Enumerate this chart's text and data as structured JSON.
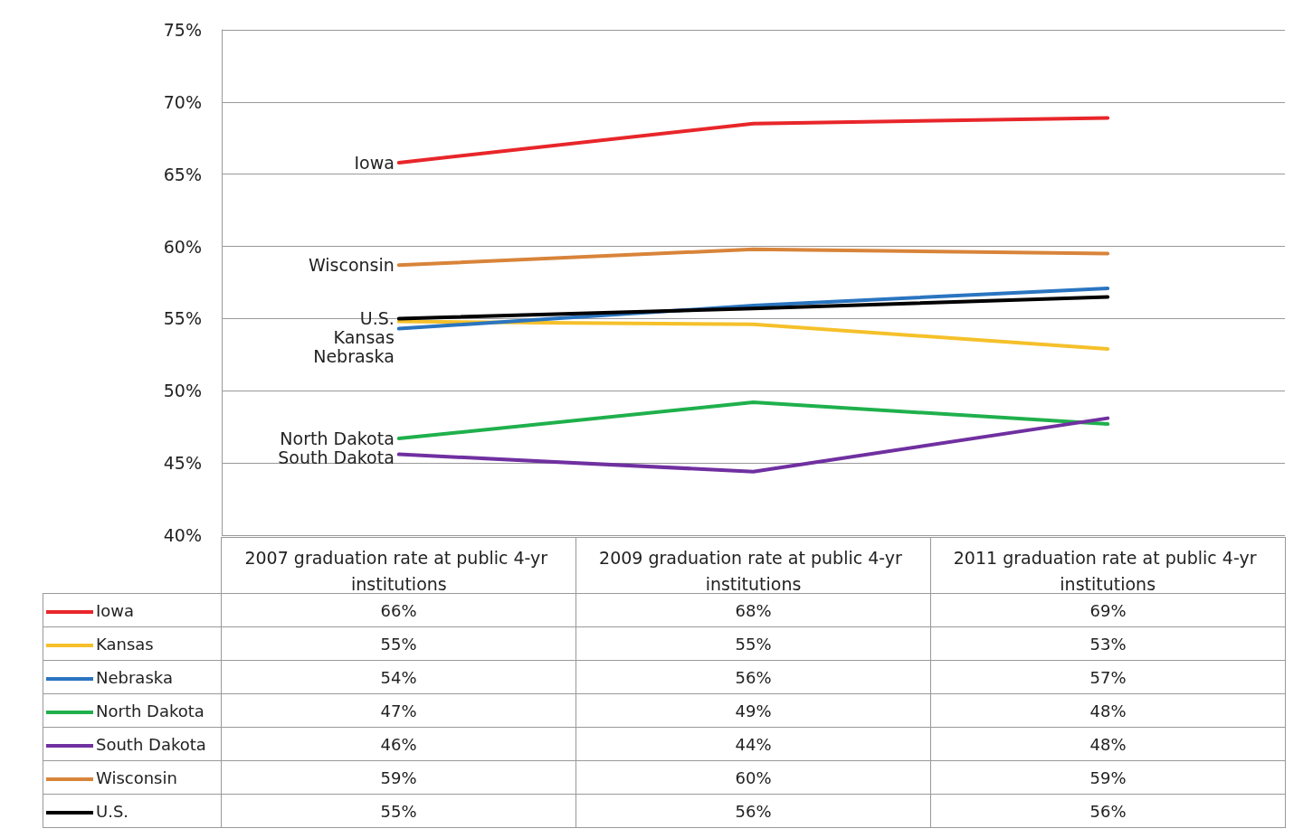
{
  "chart_data": {
    "type": "line",
    "categories": [
      "2007 graduation rate at public 4-yr institutions",
      "2009 graduation rate at public 4-yr institutions",
      "2011 graduation rate at public 4-yr institutions"
    ],
    "series": [
      {
        "name": "Iowa",
        "color": "#e8262a",
        "values": [
          65.8,
          68.5,
          68.9
        ],
        "value_labels": [
          "66%",
          "68%",
          "69%"
        ]
      },
      {
        "name": "Kansas",
        "color": "#f5c02a",
        "values": [
          54.8,
          54.6,
          52.9
        ],
        "value_labels": [
          "55%",
          "55%",
          "53%"
        ]
      },
      {
        "name": "Nebraska",
        "color": "#2a75c0",
        "values": [
          54.3,
          55.9,
          57.1
        ],
        "value_labels": [
          "54%",
          "56%",
          "57%"
        ]
      },
      {
        "name": "North Dakota",
        "color": "#1fb04c",
        "values": [
          46.7,
          49.2,
          47.7
        ],
        "value_labels": [
          "47%",
          "49%",
          "48%"
        ]
      },
      {
        "name": "South Dakota",
        "color": "#7030a0",
        "values": [
          45.6,
          44.4,
          48.1
        ],
        "value_labels": [
          "46%",
          "44%",
          "48%"
        ]
      },
      {
        "name": "Wisconsin",
        "color": "#d8843a",
        "values": [
          58.7,
          59.8,
          59.5
        ],
        "value_labels": [
          "59%",
          "60%",
          "59%"
        ]
      },
      {
        "name": "U.S.",
        "color": "#000000",
        "values": [
          55.0,
          55.7,
          56.5
        ],
        "value_labels": [
          "55%",
          "56%",
          "56%"
        ]
      }
    ],
    "ylim": [
      40,
      75
    ],
    "yticks": [
      {
        "value": 40,
        "label": "40%"
      },
      {
        "value": 45,
        "label": "45%"
      },
      {
        "value": 50,
        "label": "50%"
      },
      {
        "value": 55,
        "label": "55%"
      },
      {
        "value": 60,
        "label": "60%"
      },
      {
        "value": 65,
        "label": "65%"
      },
      {
        "value": 70,
        "label": "70%"
      },
      {
        "value": 75,
        "label": "75%"
      }
    ],
    "grid": "y",
    "marker": "none",
    "line_style": "solid",
    "legend": "bottom left"
  }
}
